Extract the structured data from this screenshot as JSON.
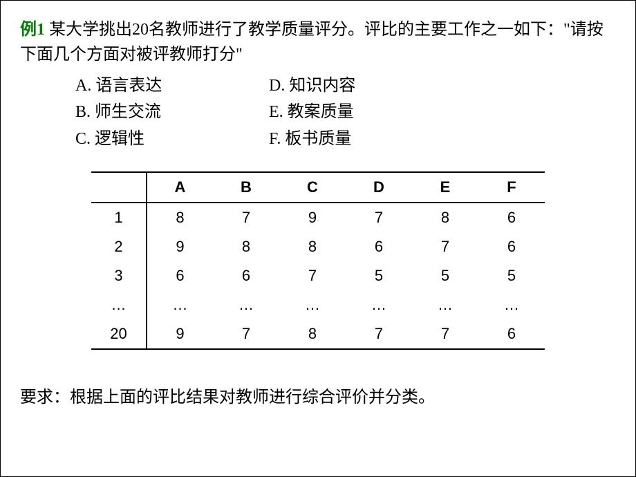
{
  "example_label": "例1",
  "intro_text": "  某大学挑出20名教师进行了教学质量评分。评比的主要工作之一如下：\"请按下面几个方面对被评教师打分\"",
  "criteria_left": [
    "A.  语言表达",
    "B.  师生交流",
    "C.  逻辑性"
  ],
  "criteria_right": [
    "D.  知识内容",
    "E.  教案质量",
    "F.  板书质量"
  ],
  "table": {
    "columns": [
      "A",
      "B",
      "C",
      "D",
      "E",
      "F"
    ],
    "rows": [
      {
        "label": "1",
        "values": [
          "8",
          "7",
          "9",
          "7",
          "8",
          "6"
        ]
      },
      {
        "label": "2",
        "values": [
          "9",
          "8",
          "8",
          "6",
          "7",
          "6"
        ]
      },
      {
        "label": "3",
        "values": [
          "6",
          "6",
          "7",
          "5",
          "5",
          "5"
        ]
      },
      {
        "label": "…",
        "values": [
          "…",
          "…",
          "…",
          "…",
          "…",
          "…"
        ]
      },
      {
        "label": "20",
        "values": [
          "9",
          "7",
          "8",
          "7",
          "7",
          "6"
        ]
      }
    ]
  },
  "requirement": "要求：根据上面的评比结果对教师进行综合评价并分类。",
  "slide_marker": "."
}
